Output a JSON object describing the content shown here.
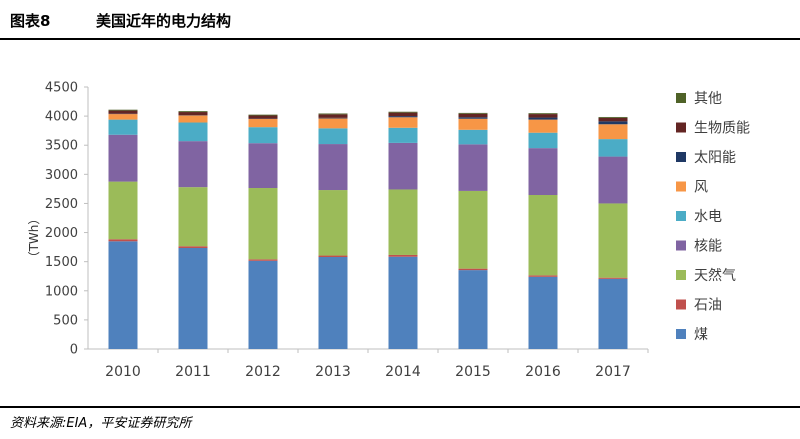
{
  "header": {
    "figure_label": "图表8",
    "title": "美国近年的电力结构"
  },
  "source": "资料来源:EIA，平安证券研究所",
  "chart_data": {
    "type": "bar",
    "stacked": true,
    "categories": [
      "2010",
      "2011",
      "2012",
      "2013",
      "2014",
      "2015",
      "2016",
      "2017"
    ],
    "ylabel": "（TWh）",
    "ylim": [
      0,
      4500
    ],
    "yticks": [
      "0",
      "500",
      "1000",
      "1500",
      "2000",
      "2500",
      "3000",
      "3500",
      "4000",
      "4500"
    ],
    "grid": false,
    "legend_position": "right",
    "series": [
      {
        "name": "煤",
        "color": "#4f81bd",
        "values": [
          1850,
          1735,
          1515,
          1580,
          1585,
          1355,
          1240,
          1205
        ]
      },
      {
        "name": "石油",
        "color": "#c0504d",
        "values": [
          35,
          30,
          25,
          25,
          30,
          25,
          25,
          20
        ]
      },
      {
        "name": "天然气",
        "color": "#9bbb59",
        "values": [
          990,
          1015,
          1225,
          1125,
          1125,
          1335,
          1380,
          1275
        ]
      },
      {
        "name": "核能",
        "color": "#8064a2",
        "values": [
          805,
          790,
          770,
          790,
          800,
          800,
          805,
          805
        ]
      },
      {
        "name": "水电",
        "color": "#4bacc6",
        "values": [
          260,
          320,
          275,
          270,
          260,
          250,
          265,
          300
        ]
      },
      {
        "name": "风",
        "color": "#f79646",
        "values": [
          95,
          120,
          140,
          170,
          180,
          190,
          225,
          255
        ]
      },
      {
        "name": "太阳能",
        "color": "#1f3864",
        "values": [
          5,
          5,
          5,
          10,
          20,
          25,
          35,
          50
        ]
      },
      {
        "name": "生物质能",
        "color": "#632523",
        "values": [
          55,
          55,
          55,
          60,
          60,
          60,
          60,
          60
        ]
      },
      {
        "name": "其他",
        "color": "#4f6228",
        "values": [
          15,
          15,
          15,
          15,
          15,
          15,
          15,
          15
        ]
      }
    ]
  }
}
